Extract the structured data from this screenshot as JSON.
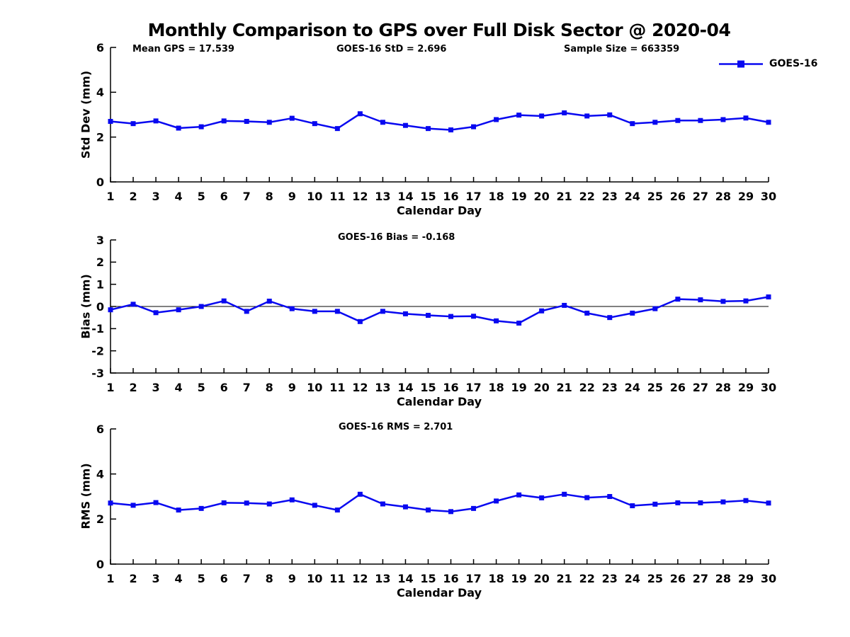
{
  "title": "Monthly Comparison to GPS over Full Disk Sector @ 2020-04",
  "legend": {
    "label": "GOES-16"
  },
  "colors": {
    "series": "#0808f0",
    "axis": "#000000"
  },
  "chart_data": [
    {
      "type": "line",
      "ylabel": "Std Dev (mm)",
      "xlabel": "Calendar Day",
      "x": [
        1,
        2,
        3,
        4,
        5,
        6,
        7,
        8,
        9,
        10,
        11,
        12,
        13,
        14,
        15,
        16,
        17,
        18,
        19,
        20,
        21,
        22,
        23,
        24,
        25,
        26,
        27,
        28,
        29,
        30
      ],
      "ylim": [
        0,
        6
      ],
      "yticks": [
        0,
        2,
        4,
        6
      ],
      "grid": false,
      "legend_position": "top-right-outside",
      "annotations": [
        "Mean GPS = 17.539",
        "GOES-16 StD = 2.696",
        "Sample Size = 663359"
      ],
      "series": [
        {
          "name": "GOES-16",
          "marker": "square",
          "values": [
            2.7,
            2.6,
            2.72,
            2.4,
            2.46,
            2.72,
            2.7,
            2.66,
            2.84,
            2.6,
            2.38,
            3.04,
            2.66,
            2.52,
            2.38,
            2.32,
            2.46,
            2.78,
            2.98,
            2.94,
            3.08,
            2.94,
            2.99,
            2.6,
            2.66,
            2.74,
            2.74,
            2.78,
            2.85,
            2.66
          ]
        }
      ]
    },
    {
      "type": "line",
      "ylabel": "Bias (mm)",
      "xlabel": "Calendar Day",
      "x": [
        1,
        2,
        3,
        4,
        5,
        6,
        7,
        8,
        9,
        10,
        11,
        12,
        13,
        14,
        15,
        16,
        17,
        18,
        19,
        20,
        21,
        22,
        23,
        24,
        25,
        26,
        27,
        28,
        29,
        30
      ],
      "ylim": [
        -3,
        3
      ],
      "yticks": [
        -3,
        -2,
        -1,
        0,
        1,
        2,
        3
      ],
      "grid": false,
      "zero_line": true,
      "annotations": [
        "GOES-16 Bias = -0.168"
      ],
      "series": [
        {
          "name": "GOES-16",
          "marker": "square",
          "values": [
            -0.15,
            0.1,
            -0.28,
            -0.15,
            0.0,
            0.25,
            -0.22,
            0.24,
            -0.1,
            -0.22,
            -0.22,
            -0.68,
            -0.22,
            -0.33,
            -0.4,
            -0.45,
            -0.44,
            -0.65,
            -0.75,
            -0.2,
            0.05,
            -0.3,
            -0.5,
            -0.3,
            -0.1,
            0.33,
            0.3,
            0.23,
            0.25,
            0.43
          ]
        }
      ]
    },
    {
      "type": "line",
      "ylabel": "RMS (mm)",
      "xlabel": "Calendar Day",
      "x": [
        1,
        2,
        3,
        4,
        5,
        6,
        7,
        8,
        9,
        10,
        11,
        12,
        13,
        14,
        15,
        16,
        17,
        18,
        19,
        20,
        21,
        22,
        23,
        24,
        25,
        26,
        27,
        28,
        29,
        30
      ],
      "ylim": [
        0,
        6
      ],
      "yticks": [
        0,
        2,
        4,
        6
      ],
      "grid": false,
      "annotations": [
        "GOES-16 RMS = 2.701"
      ],
      "series": [
        {
          "name": "GOES-16",
          "marker": "square",
          "values": [
            2.71,
            2.61,
            2.73,
            2.4,
            2.47,
            2.72,
            2.71,
            2.67,
            2.85,
            2.61,
            2.4,
            3.1,
            2.67,
            2.54,
            2.4,
            2.33,
            2.47,
            2.8,
            3.07,
            2.94,
            3.1,
            2.95,
            3.0,
            2.59,
            2.66,
            2.72,
            2.72,
            2.76,
            2.82,
            2.71
          ]
        }
      ]
    }
  ]
}
